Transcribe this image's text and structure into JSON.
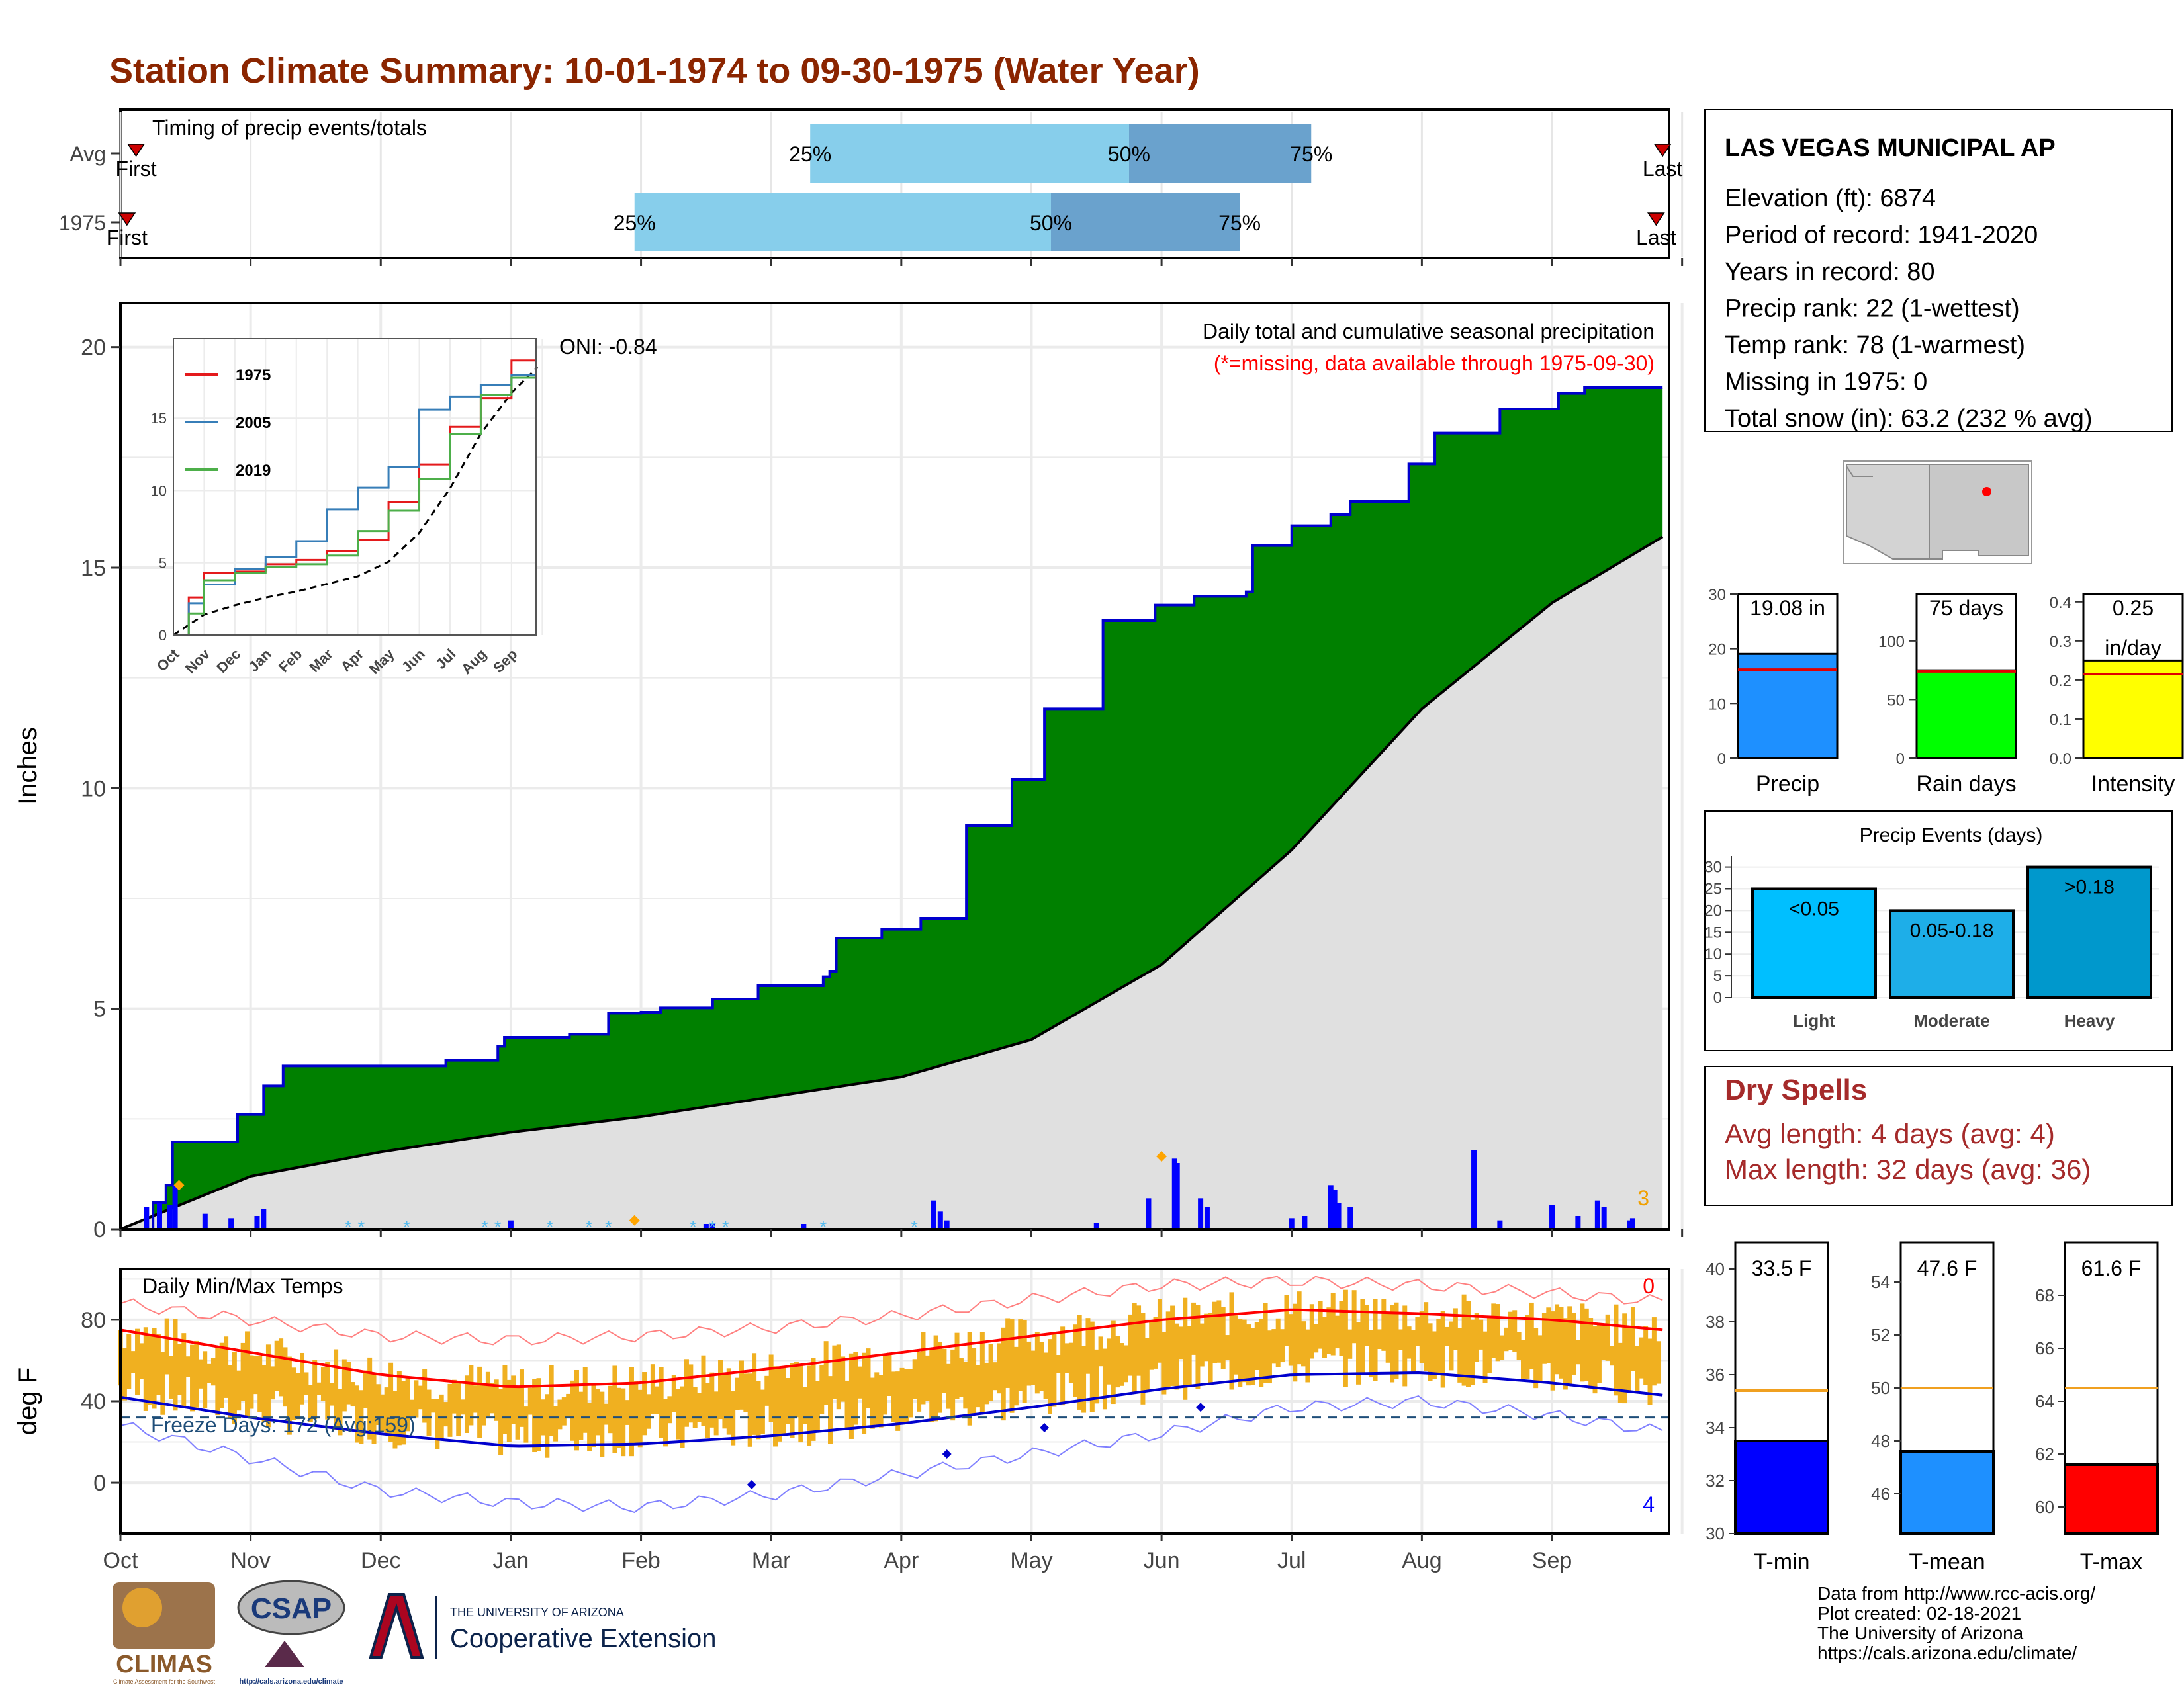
{
  "title": "Station Climate Summary: 10-01-1974 to 09-30-1975 (Water Year)",
  "colors": {
    "title": "#8b2500",
    "green_fill": "#008000",
    "blue_line": "#0000cd",
    "gray_fill": "#e0e0e0",
    "light_blue_bar": "#87ceeb",
    "mid_blue_bar": "#6aa2cd",
    "orange": "#f0b020",
    "dry_spell_text": "#a52a2a",
    "tmin_bar": "#0000ff",
    "tmean_bar": "#1e90ff",
    "tmax_bar": "#ff0000",
    "precip_bar": "#1e90ff",
    "raindays_bar": "#00ff00",
    "intensity_bar": "#ffff00",
    "light_event": "#00bfff",
    "moderate_event": "#1eaee8",
    "heavy_event": "#0098cc"
  },
  "timing": {
    "label": "Timing of precip events/totals",
    "rows": [
      {
        "name": "Avg",
        "first_label": "First",
        "last_label": "Last",
        "first": 0.12,
        "q25": 5.3,
        "q50": 7.75,
        "q75": 9.15,
        "last": 11.85
      },
      {
        "name": "1975",
        "first_label": "First",
        "last_label": "Last",
        "first": 0.05,
        "q25": 3.95,
        "q50": 7.15,
        "q75": 8.6,
        "last": 11.8
      }
    ],
    "quartile_labels": [
      "25%",
      "50%",
      "75%"
    ]
  },
  "months": [
    "Oct",
    "Nov",
    "Dec",
    "Jan",
    "Feb",
    "Mar",
    "Apr",
    "May",
    "Jun",
    "Jul",
    "Aug",
    "Sep"
  ],
  "precip_panel": {
    "ylabel": "Inches",
    "yticks": [
      0,
      5,
      10,
      15,
      20
    ],
    "title": "Daily total and cumulative seasonal precipitation",
    "subtitle": "(*=missing, data available through 1975-09-30)",
    "oni": "ONI: -0.84",
    "corner_count": "3",
    "inset": {
      "yticks": [
        0,
        5,
        10,
        15
      ],
      "months": [
        "Oct",
        "Nov",
        "Dec",
        "Jan",
        "Feb",
        "Mar",
        "Apr",
        "May",
        "Jun",
        "Jul",
        "Aug",
        "Sep"
      ],
      "legend": [
        {
          "name": "1975",
          "color": "#e41a1c"
        },
        {
          "name": "2005",
          "color": "#377eb8"
        },
        {
          "name": "2019",
          "color": "#4daf4a"
        }
      ]
    }
  },
  "temp_panel": {
    "ylabel": "deg F",
    "yticks": [
      0,
      40,
      80
    ],
    "title": "Daily Min/Max Temps",
    "freeze_label": "Freeze Days: 172 (Avg:159)",
    "max_count": "0",
    "min_count": "4"
  },
  "station": {
    "name": "LAS VEGAS MUNICIPAL AP",
    "lines": [
      "Elevation (ft): 6874",
      "Period of record: 1941-2020",
      "Years in record: 80",
      "Precip rank: 22 (1-wettest)",
      "Temp rank: 78 (1-warmest)",
      "Missing in 1975: 0",
      "Total snow (in): 63.2 (232 % avg)"
    ]
  },
  "stat_bars": [
    {
      "label": "Precip",
      "value_text": "19.08 in",
      "value": 19.08,
      "avg": 16.2,
      "ymax": 30,
      "yticks": [
        0,
        10,
        20,
        30
      ]
    },
    {
      "label": "Rain days",
      "value_text": "75 days",
      "value": 75,
      "avg": 74,
      "ymax": 140,
      "yticks": [
        0,
        50,
        100
      ]
    },
    {
      "label": "Intensity",
      "value_text": "0.25",
      "value_text2": "in/day",
      "value": 0.25,
      "avg": 0.215,
      "ymax": 0.42,
      "yticks": [
        0.0,
        0.1,
        0.2,
        0.3,
        0.4
      ]
    }
  ],
  "precip_events": {
    "title": "Precip Events (days)",
    "yticks": [
      0,
      5,
      10,
      15,
      20,
      25,
      30
    ],
    "bars": [
      {
        "category": "Light",
        "label": "<0.05",
        "value": 25
      },
      {
        "category": "Moderate",
        "label": "0.05-0.18",
        "value": 20
      },
      {
        "category": "Heavy",
        "label": ">0.18",
        "value": 30
      }
    ]
  },
  "dry_spells": {
    "title": "Dry Spells",
    "avg": "Avg length: 4 days (avg: 4)",
    "max": "Max length: 32 days (avg: 36)"
  },
  "temp_bars": [
    {
      "label": "T-min",
      "value_text": "33.5 F",
      "value": 33.5,
      "avg": 35.4,
      "ymin": 30,
      "ymax": 41,
      "yticks": [
        30,
        32,
        34,
        36,
        38,
        40
      ]
    },
    {
      "label": "T-mean",
      "value_text": "47.6 F",
      "value": 47.6,
      "avg": 50.0,
      "ymin": 44.5,
      "ymax": 55.5,
      "yticks": [
        46,
        48,
        50,
        52,
        54
      ]
    },
    {
      "label": "T-max",
      "value_text": "61.6 F",
      "value": 61.6,
      "avg": 64.5,
      "ymin": 59,
      "ymax": 70,
      "yticks": [
        60,
        62,
        64,
        66,
        68
      ]
    }
  ],
  "footer": {
    "lines": [
      "Data from http://www.rcc-acis.org/",
      "Plot created: 02-18-2021",
      "The University of Arizona",
      "https://cals.arizona.edu/climate/"
    ],
    "logos": {
      "climas": "CLIMAS",
      "climas_sub": "Climate Assessment for the Southwest",
      "csap": "CSAP",
      "csap_url": "http://cals.arizona.edu/climate",
      "ua_line1": "THE UNIVERSITY OF ARIZONA",
      "ua_line2": "Cooperative Extension"
    }
  },
  "chart_data": {
    "type": "area",
    "title": "Daily total and cumulative seasonal precipitation",
    "ylabel": "Inches",
    "ylim": [
      0,
      21
    ],
    "x_units": "month index (Oct=0)",
    "cumulative_1975": {
      "x": [
        0,
        0.25,
        0.35,
        0.4,
        0.9,
        1.1,
        1.25,
        2.5,
        2.9,
        2.95,
        3.45,
        3.75,
        4.0,
        4.15,
        4.55,
        4.9,
        5.4,
        5.45,
        5.5,
        5.85,
        6.15,
        6.5,
        6.85,
        7.1,
        7.55,
        7.95,
        8.25,
        8.65,
        8.7,
        9.0,
        9.3,
        9.45,
        9.9,
        10.1,
        10.6,
        11.05,
        11.25,
        11.5,
        11.85
      ],
      "y": [
        0,
        0.6,
        1.0,
        1.98,
        2.6,
        3.25,
        3.7,
        3.83,
        4.15,
        4.35,
        4.42,
        4.9,
        4.92,
        5.02,
        5.22,
        5.52,
        5.72,
        5.85,
        6.6,
        6.8,
        7.05,
        9.15,
        10.2,
        11.8,
        13.8,
        14.15,
        14.35,
        14.45,
        15.5,
        15.95,
        16.2,
        16.5,
        17.35,
        18.05,
        18.6,
        18.95,
        19.08,
        19.08,
        19.08
      ]
    },
    "average_cumulative": {
      "x": [
        0,
        1,
        2,
        3,
        4,
        5,
        6,
        7,
        8,
        9,
        10,
        11,
        11.85
      ],
      "y": [
        0,
        1.2,
        1.75,
        2.2,
        2.55,
        3.0,
        3.45,
        4.3,
        6.0,
        8.6,
        11.8,
        14.2,
        15.7
      ]
    },
    "inset_cumulative": [
      {
        "name": "1975",
        "x": [
          0,
          0.5,
          1,
          2,
          3,
          4,
          5,
          6,
          7,
          8,
          9,
          10,
          11,
          11.8
        ],
        "y": [
          0,
          2.6,
          4.3,
          4.4,
          4.9,
          5.2,
          5.8,
          6.6,
          9.2,
          11.8,
          14.4,
          16.4,
          19.0,
          20.1
        ]
      },
      {
        "name": "2005",
        "x": [
          0,
          0.5,
          1,
          2,
          3,
          4,
          5,
          6,
          7,
          8,
          9,
          10,
          11,
          11.8
        ],
        "y": [
          0,
          2.2,
          3.5,
          4.6,
          5.4,
          6.5,
          8.7,
          10.2,
          11.6,
          15.6,
          16.5,
          17.3,
          18.0,
          20.0
        ]
      },
      {
        "name": "2019",
        "x": [
          0,
          0.5,
          1,
          2,
          3,
          4,
          5,
          6,
          7,
          8,
          9,
          10,
          11,
          11.8
        ],
        "y": [
          0,
          1.5,
          3.8,
          4.3,
          4.7,
          4.9,
          5.5,
          7.2,
          8.6,
          10.8,
          13.9,
          16.6,
          17.8,
          18.7
        ]
      }
    ],
    "daily_precip_bars": {
      "x": [
        0.2,
        0.3,
        0.38,
        0.42,
        0.65,
        0.85,
        1.05,
        1.1,
        3.0,
        4.5,
        4.55,
        5.25,
        6.25,
        6.3,
        6.35,
        7.5,
        7.9,
        8.1,
        8.12,
        8.3,
        8.35,
        9.0,
        9.1,
        9.3,
        9.33,
        9.36,
        9.45,
        10.4,
        10.6,
        11.0,
        11.2,
        11.35,
        11.4,
        11.6,
        11.62
      ],
      "y": [
        0.5,
        0.6,
        0.55,
        1.0,
        0.35,
        0.25,
        0.3,
        0.45,
        0.2,
        0.12,
        0.15,
        0.12,
        0.65,
        0.4,
        0.2,
        0.15,
        0.7,
        1.6,
        1.5,
        0.7,
        0.5,
        0.25,
        0.3,
        1.0,
        0.9,
        0.6,
        0.5,
        1.8,
        0.2,
        0.55,
        0.3,
        0.65,
        0.5,
        0.2,
        0.25
      ]
    },
    "temperature": {
      "ylabel": "deg F",
      "ylim": [
        -25,
        105
      ],
      "max_avg": {
        "x": [
          0,
          1,
          2,
          3,
          4,
          5,
          6,
          7,
          8,
          9,
          10,
          11,
          11.85
        ],
        "y": [
          75,
          64,
          53,
          47,
          49,
          56,
          64,
          72,
          80,
          85,
          83,
          80,
          75
        ]
      },
      "min_avg": {
        "x": [
          0,
          1,
          2,
          3,
          4,
          5,
          6,
          7,
          8,
          9,
          10,
          11,
          11.85
        ],
        "y": [
          42,
          32,
          24,
          18,
          19,
          23,
          29,
          37,
          46,
          53,
          54,
          49,
          43
        ]
      },
      "max_record": {
        "x": [
          0,
          1,
          2,
          3,
          4,
          5,
          6,
          7,
          8,
          9,
          10,
          11,
          11.85
        ],
        "y": [
          88,
          80,
          72,
          70,
          72,
          76,
          82,
          90,
          97,
          99,
          97,
          93,
          89
        ]
      },
      "min_record": {
        "x": [
          0,
          1,
          2,
          3,
          4,
          5,
          6,
          7,
          8,
          9,
          10,
          11,
          11.85
        ],
        "y": [
          28,
          12,
          -4,
          -10,
          -12,
          -6,
          4,
          14,
          24,
          37,
          40,
          33,
          25
        ]
      },
      "freeze_line": 32
    }
  }
}
